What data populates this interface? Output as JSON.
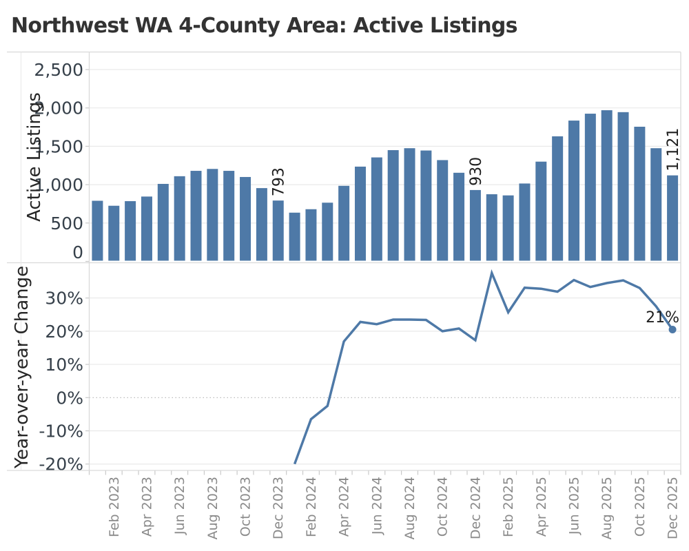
{
  "title": "Northwest WA 4-County Area: Active Listings",
  "colors": {
    "bar": "#4e79a7",
    "line": "#4e79a7",
    "accent_text": "#36404a",
    "muted_text": "#8a8a8a"
  },
  "x_axis": {
    "tick_labels": [
      "Feb 2023",
      "Apr 2023",
      "Jun 2023",
      "Aug 2023",
      "Oct 2023",
      "Dec 2023",
      "Feb 2024",
      "Apr 2024",
      "Jun 2024",
      "Aug 2024",
      "Oct 2024",
      "Dec 2024",
      "Feb 2025",
      "Apr 2025",
      "Jun 2025",
      "Aug 2025",
      "Oct 2025",
      "Dec 2025"
    ]
  },
  "chart_data": [
    {
      "type": "bar",
      "panel": "top",
      "title": "",
      "xlabel": "",
      "ylabel": "Active Listings",
      "ylim": [
        0,
        2700
      ],
      "yticks": [
        0,
        500,
        1000,
        1500,
        2000,
        2500
      ],
      "ytick_labels": [
        "0",
        "500",
        "1,000",
        "1,500",
        "2,000",
        "2,500"
      ],
      "grid": true,
      "legend": "none",
      "bar_color": "#4e79a7",
      "categories": [
        "Jan 2023",
        "Feb 2023",
        "Mar 2023",
        "Apr 2023",
        "May 2023",
        "Jun 2023",
        "Jul 2023",
        "Aug 2023",
        "Sep 2023",
        "Oct 2023",
        "Nov 2023",
        "Dec 2023",
        "Jan 2024",
        "Feb 2024",
        "Mar 2024",
        "Apr 2024",
        "May 2024",
        "Jun 2024",
        "Jul 2024",
        "Aug 2024",
        "Sep 2024",
        "Oct 2024",
        "Nov 2024",
        "Dec 2024",
        "Jan 2025",
        "Feb 2025",
        "Mar 2025",
        "Apr 2025",
        "May 2025",
        "Jun 2025",
        "Jul 2025",
        "Aug 2025",
        "Sep 2025",
        "Oct 2025",
        "Nov 2025",
        "Dec 2025"
      ],
      "values": [
        790,
        725,
        785,
        845,
        1010,
        1110,
        1180,
        1205,
        1180,
        1100,
        955,
        793,
        635,
        680,
        765,
        985,
        1235,
        1355,
        1450,
        1475,
        1445,
        1320,
        1155,
        930,
        875,
        860,
        1015,
        1300,
        1630,
        1835,
        1925,
        1970,
        1945,
        1755,
        1475,
        1121
      ],
      "annotations": [
        {
          "category": "Dec 2023",
          "text": "793"
        },
        {
          "category": "Dec 2024",
          "text": "930"
        },
        {
          "category": "Dec 2025",
          "text": "1,121"
        }
      ]
    },
    {
      "type": "line",
      "panel": "bottom",
      "title": "",
      "xlabel": "",
      "ylabel": "Year-over-year Change",
      "ylim": [
        -22,
        40
      ],
      "yticks": [
        -20,
        -10,
        0,
        10,
        20,
        30
      ],
      "ytick_labels": [
        "-20%",
        "-10%",
        "0%",
        "10%",
        "20%",
        "30%"
      ],
      "grid": true,
      "zero_line": "dotted",
      "legend": "none",
      "line_color": "#4e79a7",
      "end_marker": true,
      "categories": [
        "Jan 2023",
        "Feb 2023",
        "Mar 2023",
        "Apr 2023",
        "May 2023",
        "Jun 2023",
        "Jul 2023",
        "Aug 2023",
        "Sep 2023",
        "Oct 2023",
        "Nov 2023",
        "Dec 2023",
        "Jan 2024",
        "Feb 2024",
        "Mar 2024",
        "Apr 2024",
        "May 2024",
        "Jun 2024",
        "Jul 2024",
        "Aug 2024",
        "Sep 2024",
        "Oct 2024",
        "Nov 2024",
        "Dec 2024",
        "Jan 2025",
        "Feb 2025",
        "Mar 2025",
        "Apr 2025",
        "May 2025",
        "Jun 2025",
        "Jul 2025",
        "Aug 2025",
        "Sep 2025",
        "Oct 2025",
        "Nov 2025",
        "Dec 2025"
      ],
      "values": [
        null,
        null,
        null,
        null,
        null,
        null,
        null,
        null,
        null,
        null,
        null,
        null,
        -20.0,
        -6.5,
        -2.5,
        16.9,
        22.8,
        22.1,
        23.5,
        23.5,
        23.4,
        20.0,
        20.8,
        17.3,
        37.5,
        25.7,
        33.1,
        32.8,
        31.9,
        35.4,
        33.3,
        34.5,
        35.3,
        33.0,
        27.5,
        20.5
      ],
      "annotations": [
        {
          "category": "Dec 2025",
          "text": "21%"
        }
      ]
    }
  ]
}
